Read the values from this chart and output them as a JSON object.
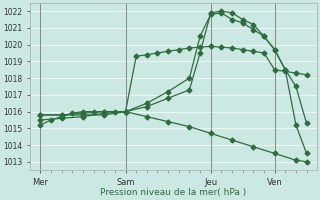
{
  "bg_color": "#cce8e3",
  "grid_color": "#ffffff",
  "line_color": "#2d6e3e",
  "xlabel": "Pression niveau de la mer( hPa )",
  "ylim": [
    1012.5,
    1022.5
  ],
  "yticks": [
    1013,
    1014,
    1015,
    1016,
    1017,
    1018,
    1019,
    1020,
    1021,
    1022
  ],
  "day_labels": [
    "Mer",
    "Sam",
    "Jeu",
    "Ven"
  ],
  "day_positions": [
    0,
    24,
    48,
    66
  ],
  "xlim": [
    -3,
    78
  ],
  "vline_positions": [
    0,
    24,
    48,
    66
  ],
  "line1_x": [
    0,
    3,
    6,
    9,
    12,
    15,
    18,
    21,
    24,
    27,
    30,
    33,
    36,
    39,
    42,
    45,
    48,
    51,
    54,
    57,
    60,
    63,
    66,
    69,
    72,
    75
  ],
  "line1_y": [
    1015.2,
    1015.5,
    1015.7,
    1015.9,
    1016.0,
    1016.0,
    1016.0,
    1016.0,
    1016.0,
    1019.3,
    1019.4,
    1019.5,
    1019.6,
    1019.7,
    1019.8,
    1019.85,
    1019.9,
    1019.85,
    1019.8,
    1019.7,
    1019.6,
    1019.5,
    1018.5,
    1018.4,
    1018.3,
    1018.2
  ],
  "line2_x": [
    0,
    6,
    12,
    18,
    24,
    30,
    36,
    42,
    45,
    48,
    51,
    54,
    57,
    60,
    63,
    66,
    69,
    72,
    75
  ],
  "line2_y": [
    1015.5,
    1015.6,
    1015.7,
    1015.9,
    1016.0,
    1016.3,
    1016.8,
    1017.3,
    1019.5,
    1021.9,
    1022.0,
    1021.9,
    1021.5,
    1021.2,
    1020.5,
    1019.7,
    1018.5,
    1017.5,
    1015.3
  ],
  "line3_x": [
    0,
    6,
    12,
    18,
    24,
    30,
    36,
    42,
    45,
    48,
    51,
    54,
    57,
    60,
    63,
    66,
    69,
    72,
    75
  ],
  "line3_y": [
    1015.8,
    1015.8,
    1015.9,
    1016.0,
    1016.0,
    1016.5,
    1017.2,
    1018.0,
    1020.5,
    1021.8,
    1021.9,
    1021.5,
    1021.3,
    1020.9,
    1020.5,
    1019.7,
    1018.5,
    1015.2,
    1013.5
  ],
  "line4_x": [
    0,
    6,
    12,
    18,
    24,
    30,
    36,
    42,
    48,
    54,
    60,
    66,
    72,
    75
  ],
  "line4_y": [
    1015.8,
    1015.8,
    1015.8,
    1015.8,
    1016.0,
    1015.7,
    1015.4,
    1015.1,
    1014.7,
    1014.3,
    1013.9,
    1013.5,
    1013.1,
    1013.0
  ],
  "ytick_fontsize": 5.5,
  "xtick_fontsize": 6.0,
  "xlabel_fontsize": 6.5,
  "marker_size": 2.5,
  "line_width": 0.9
}
